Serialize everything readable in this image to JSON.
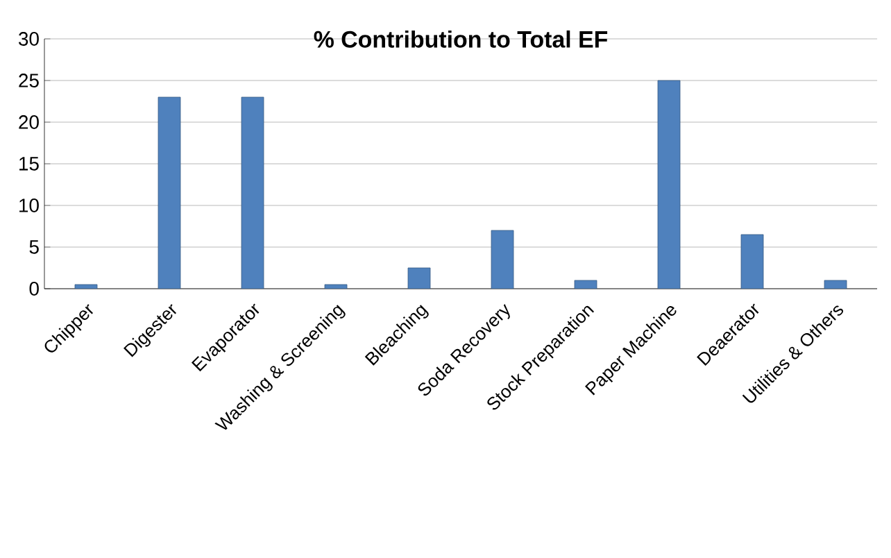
{
  "chart_data": {
    "type": "bar",
    "title": "% Contribution to Total EF",
    "categories": [
      "Chipper",
      "Digester",
      "Evaporator",
      "Washing & Screening",
      "Bleaching",
      "Soda Recovery",
      "Stock Preparation",
      "Paper Machine",
      "Deaerator",
      "Utilities & Others"
    ],
    "values": [
      0.5,
      23,
      23,
      0.5,
      2.5,
      7,
      1,
      25,
      6.5,
      1
    ],
    "color": "#4f81bd",
    "ylim": [
      0,
      30
    ],
    "yticks": [
      0,
      5,
      10,
      15,
      20,
      25,
      30
    ],
    "grid": "y"
  }
}
